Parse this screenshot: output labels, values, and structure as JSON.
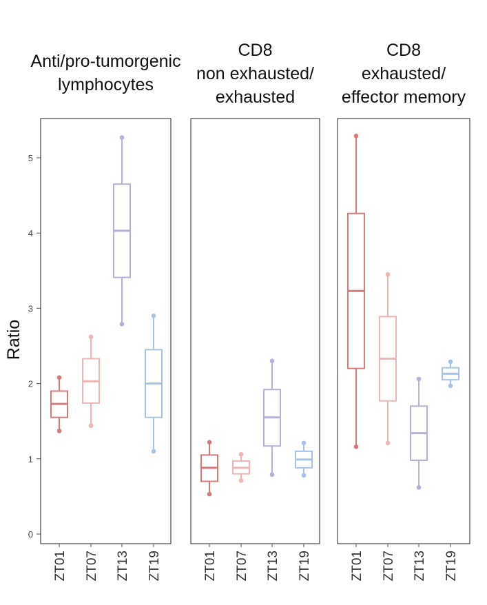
{
  "chart_data": {
    "type": "boxplot",
    "ylabel": "Ratio",
    "yticks": [
      0,
      1,
      2,
      3,
      4,
      5
    ],
    "categories": [
      "ZT01",
      "ZT07",
      "ZT13",
      "ZT19"
    ],
    "colors": {
      "ZT01": "#d9787a",
      "ZT07": "#f0b4b4",
      "ZT13": "#b3b1d9",
      "ZT19": "#a7c4e8"
    },
    "panels": [
      {
        "title_lines": [
          "Anti/pro-tumorgenic",
          "lymphocytes"
        ],
        "boxes": [
          {
            "category": "ZT01",
            "min": 1.37,
            "q1": 1.55,
            "median": 1.73,
            "q3": 1.9,
            "max": 2.08
          },
          {
            "category": "ZT07",
            "min": 1.44,
            "q1": 1.74,
            "median": 2.03,
            "q3": 2.33,
            "max": 2.62
          },
          {
            "category": "ZT13",
            "min": 2.79,
            "q1": 3.41,
            "median": 4.03,
            "q3": 4.65,
            "max": 5.27
          },
          {
            "category": "ZT19",
            "min": 1.1,
            "q1": 1.55,
            "median": 2.0,
            "q3": 2.45,
            "max": 2.9
          }
        ]
      },
      {
        "title_lines": [
          "CD8",
          "non exhausted/",
          "exhausted"
        ],
        "boxes": [
          {
            "category": "ZT01",
            "min": 0.53,
            "q1": 0.7,
            "median": 0.88,
            "q3": 1.05,
            "max": 1.22
          },
          {
            "category": "ZT07",
            "min": 0.71,
            "q1": 0.8,
            "median": 0.88,
            "q3": 0.97,
            "max": 1.06
          },
          {
            "category": "ZT13",
            "min": 0.79,
            "q1": 1.17,
            "median": 1.55,
            "q3": 1.92,
            "max": 2.3
          },
          {
            "category": "ZT19",
            "min": 0.78,
            "q1": 0.88,
            "median": 0.99,
            "q3": 1.1,
            "max": 1.21
          }
        ]
      },
      {
        "title_lines": [
          "CD8",
          "exhausted/",
          "effector memory"
        ],
        "boxes": [
          {
            "category": "ZT01",
            "min": 1.16,
            "q1": 2.2,
            "median": 3.23,
            "q3": 4.26,
            "max": 5.29
          },
          {
            "category": "ZT07",
            "min": 1.21,
            "q1": 1.77,
            "median": 2.33,
            "q3": 2.89,
            "max": 3.45
          },
          {
            "category": "ZT13",
            "min": 0.62,
            "q1": 0.98,
            "median": 1.34,
            "q3": 1.7,
            "max": 2.06
          },
          {
            "category": "ZT19",
            "min": 1.97,
            "q1": 2.05,
            "median": 2.13,
            "q3": 2.21,
            "max": 2.29
          }
        ]
      }
    ]
  }
}
